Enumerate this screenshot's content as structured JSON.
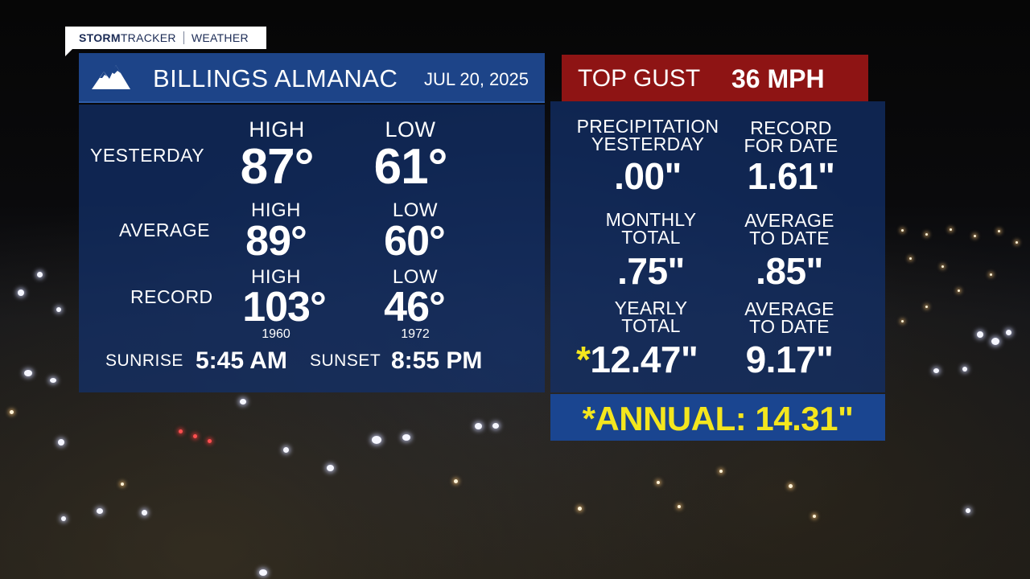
{
  "brand": {
    "bold": "STORM",
    "rest": "TRACKER",
    "section": "WEATHER"
  },
  "header": {
    "title": "BILLINGS ALMANAC",
    "date": "JUL 20, 2025",
    "icon": "mountain-icon"
  },
  "gust": {
    "label": "TOP GUST",
    "value": "36 MPH"
  },
  "temperature": {
    "yesterday": {
      "label": "YESTERDAY",
      "high_label": "HIGH",
      "low_label": "LOW",
      "high": "87°",
      "low": "61°"
    },
    "average": {
      "label": "AVERAGE",
      "high_label": "HIGH",
      "low_label": "LOW",
      "high": "89°",
      "low": "60°"
    },
    "record": {
      "label": "RECORD",
      "high_label": "HIGH",
      "low_label": "LOW",
      "high": "103°",
      "low": "46°",
      "high_year": "1960",
      "low_year": "1972"
    }
  },
  "sun": {
    "sunrise_label": "SUNRISE",
    "sunrise": "5:45 AM",
    "sunset_label": "SUNSET",
    "sunset": "8:55 PM"
  },
  "precipitation": {
    "yesterday": {
      "label_1": "PRECIPITATION",
      "label_2": "YESTERDAY",
      "value": ".00\""
    },
    "record": {
      "label_1": "RECORD",
      "label_2": "FOR DATE",
      "value": "1.61\""
    },
    "monthly": {
      "label_1": "MONTHLY",
      "label_2": "TOTAL",
      "value": ".75\""
    },
    "monthly_avg": {
      "label_1": "AVERAGE",
      "label_2": "TO DATE",
      "value": ".85\""
    },
    "yearly": {
      "label_1": "YEARLY",
      "label_2": "TOTAL",
      "star": "*",
      "value": "12.47\""
    },
    "yearly_avg": {
      "label_1": "AVERAGE",
      "label_2": "TO DATE",
      "value": "9.17\""
    }
  },
  "annual": {
    "text": "*ANNUAL: 14.31\""
  },
  "colors": {
    "panel_blue": "#1d4488",
    "gust_red": "#8e1414",
    "highlight_yellow": "#f4e61e",
    "brand_navy": "#1b2b55"
  }
}
